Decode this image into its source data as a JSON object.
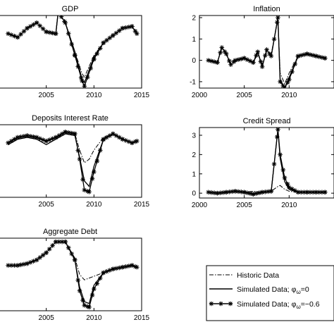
{
  "chart_data": [
    {
      "type": "line",
      "title": "GDP",
      "xlim": [
        2000,
        2015
      ],
      "ylim": [
        -2,
        2
      ],
      "xticks": [
        2005,
        2010,
        2015
      ],
      "yticks": [],
      "series": [
        {
          "style": "historic",
          "x": [
            2001,
            2002,
            2003,
            2004,
            2005,
            2006,
            2006.25,
            2007,
            2008,
            2008.75,
            2009,
            2010,
            2011,
            2012,
            2013,
            2014,
            2014.5
          ],
          "y": [
            1.0,
            0.8,
            1.3,
            1.6,
            1.1,
            1.0,
            2.2,
            1.6,
            0.0,
            -1.2,
            -1.4,
            -0.2,
            0.5,
            0.9,
            1.3,
            1.4,
            1.0
          ]
        },
        {
          "style": "zero",
          "x": [
            2001,
            2002,
            2003,
            2004,
            2005,
            2006,
            2006.25,
            2007,
            2008,
            2008.75,
            2009,
            2010,
            2011,
            2012,
            2013,
            2014,
            2014.5
          ],
          "y": [
            1.0,
            0.8,
            1.3,
            1.6,
            1.1,
            1.0,
            2.2,
            1.6,
            0.0,
            -1.5,
            -1.7,
            -0.3,
            0.5,
            0.9,
            1.3,
            1.4,
            1.0
          ]
        },
        {
          "style": "neg",
          "x": [
            2001,
            2002,
            2003,
            2004,
            2005,
            2006,
            2006.25,
            2007,
            2008,
            2008.75,
            2009,
            2010,
            2011,
            2012,
            2013,
            2014,
            2014.5
          ],
          "y": [
            1.0,
            0.8,
            1.3,
            1.6,
            1.1,
            1.0,
            2.2,
            1.6,
            -0.2,
            -1.6,
            -1.9,
            -0.4,
            0.5,
            0.9,
            1.3,
            1.4,
            1.0
          ]
        }
      ]
    },
    {
      "type": "line",
      "title": "Inflation",
      "xlim": [
        2000,
        2015
      ],
      "ylim": [
        -1.3,
        2.1
      ],
      "xticks": [
        2000,
        2005,
        2010
      ],
      "yticks": [
        -1,
        0,
        1,
        2
      ],
      "series": [
        {
          "style": "historic",
          "x": [
            2001,
            2002,
            2002.5,
            2003,
            2003.5,
            2004,
            2005,
            2006,
            2006.5,
            2007,
            2007.5,
            2008,
            2008.75,
            2009,
            2009.5,
            2010,
            2011,
            2012,
            2013,
            2014
          ],
          "y": [
            0.0,
            -0.1,
            0.6,
            0.3,
            -0.2,
            0.0,
            0.1,
            -0.1,
            0.3,
            -0.2,
            0.4,
            0.3,
            1.9,
            -0.6,
            -1.1,
            -0.6,
            0.2,
            0.3,
            0.2,
            0.1
          ]
        },
        {
          "style": "zero",
          "x": [
            2001,
            2002,
            2002.5,
            2003,
            2003.5,
            2004,
            2005,
            2006,
            2006.5,
            2007,
            2007.5,
            2008,
            2008.75,
            2009,
            2009.5,
            2010,
            2011,
            2012,
            2013,
            2014
          ],
          "y": [
            0.0,
            -0.1,
            0.6,
            0.3,
            -0.2,
            0.0,
            0.1,
            -0.1,
            0.4,
            -0.3,
            0.5,
            0.2,
            2.0,
            -0.9,
            -1.3,
            -0.8,
            0.2,
            0.3,
            0.2,
            0.1
          ]
        },
        {
          "style": "neg",
          "x": [
            2001,
            2002,
            2002.5,
            2003,
            2003.5,
            2004,
            2005,
            2006,
            2006.5,
            2007,
            2007.5,
            2008,
            2008.75,
            2009,
            2009.5,
            2010,
            2011,
            2012,
            2013,
            2014
          ],
          "y": [
            0.0,
            -0.1,
            0.6,
            0.3,
            -0.2,
            0.0,
            0.1,
            -0.1,
            0.4,
            -0.3,
            0.5,
            0.2,
            2.0,
            -1.0,
            -1.3,
            -0.9,
            0.2,
            0.3,
            0.2,
            0.1
          ]
        }
      ]
    },
    {
      "type": "line",
      "title": "Deposits Interest Rate",
      "xlim": [
        2000,
        2015
      ],
      "ylim": [
        -2,
        2
      ],
      "xticks": [
        2005,
        2010,
        2015
      ],
      "yticks": [],
      "series": [
        {
          "style": "historic",
          "x": [
            2001,
            2002,
            2003,
            2004,
            2005,
            2006,
            2007,
            2008,
            2008.5,
            2009,
            2009.5,
            2010,
            2011,
            2012,
            2013,
            2014,
            2014.5
          ],
          "y": [
            1.0,
            1.3,
            1.4,
            1.3,
            1.1,
            1.3,
            1.6,
            1.5,
            0.6,
            -0.1,
            0.1,
            0.6,
            1.3,
            1.5,
            1.2,
            1.0,
            1.1
          ]
        },
        {
          "style": "zero",
          "x": [
            2001,
            2002,
            2003,
            2004,
            2005,
            2006,
            2007,
            2008,
            2008.5,
            2009,
            2009.5,
            2010,
            2011,
            2012,
            2013,
            2014,
            2014.5
          ],
          "y": [
            0.9,
            1.2,
            1.3,
            1.2,
            0.9,
            1.2,
            1.5,
            1.4,
            0.2,
            -1.1,
            -1.4,
            -0.3,
            1.2,
            1.5,
            1.2,
            1.0,
            1.1
          ]
        },
        {
          "style": "neg",
          "x": [
            2001,
            2002,
            2003,
            2004,
            2005,
            2006,
            2007,
            2008,
            2008.5,
            2009,
            2009.5,
            2010,
            2011,
            2012,
            2013,
            2014,
            2014.5
          ],
          "y": [
            1.0,
            1.3,
            1.4,
            1.3,
            1.1,
            1.3,
            1.6,
            1.5,
            0.1,
            -1.6,
            -1.7,
            -0.6,
            1.2,
            1.5,
            1.2,
            1.0,
            1.1
          ]
        }
      ]
    },
    {
      "type": "line",
      "title": "Credit Spread",
      "xlim": [
        2000,
        2015
      ],
      "ylim": [
        -0.25,
        3.4
      ],
      "xticks": [
        2000,
        2005,
        2010
      ],
      "yticks": [
        0,
        1,
        2,
        3
      ],
      "series": [
        {
          "style": "historic",
          "x": [
            2001,
            2002,
            2003,
            2004,
            2005,
            2006,
            2007,
            2008,
            2008.75,
            2009,
            2009.5,
            2010,
            2011,
            2012,
            2013,
            2014
          ],
          "y": [
            0.05,
            0.0,
            0.05,
            0.1,
            0.05,
            0.1,
            0.05,
            0.1,
            0.35,
            0.4,
            0.2,
            0.1,
            0.05,
            0.05,
            0.05,
            0.05
          ]
        },
        {
          "style": "zero",
          "x": [
            2001,
            2002,
            2003,
            2004,
            2005,
            2006,
            2007,
            2008,
            2008.75,
            2009,
            2009.5,
            2010,
            2011,
            2012,
            2013,
            2014
          ],
          "y": [
            0.05,
            0.0,
            0.05,
            0.1,
            0.05,
            -0.05,
            0.05,
            0.1,
            3.3,
            1.8,
            0.6,
            0.2,
            0.05,
            0.05,
            0.05,
            0.05
          ]
        },
        {
          "style": "neg",
          "x": [
            2001,
            2002,
            2003,
            2004,
            2005,
            2006,
            2007,
            2008,
            2008.75,
            2009,
            2009.5,
            2010,
            2011,
            2012,
            2013,
            2014
          ],
          "y": [
            0.05,
            0.0,
            0.05,
            0.1,
            0.05,
            -0.05,
            0.05,
            0.1,
            3.3,
            2.0,
            0.8,
            0.3,
            0.05,
            0.05,
            0.05,
            0.05
          ]
        }
      ]
    },
    {
      "type": "line",
      "title": "Aggregate Debt",
      "xlim": [
        2000,
        2015
      ],
      "ylim": [
        -2,
        2
      ],
      "xticks": [
        2005,
        2010,
        2015
      ],
      "yticks": [],
      "series": [
        {
          "style": "historic",
          "x": [
            2001,
            2002,
            2003,
            2004,
            2005,
            2006,
            2007,
            2008,
            2008.5,
            2009,
            2009.5,
            2010,
            2011,
            2012,
            2013,
            2014,
            2014.5
          ],
          "y": [
            0.5,
            0.5,
            0.6,
            0.8,
            1.2,
            1.8,
            1.8,
            0.9,
            0.0,
            -0.3,
            -0.2,
            -0.1,
            0.1,
            0.3,
            0.4,
            0.5,
            0.4
          ]
        },
        {
          "style": "zero",
          "x": [
            2001,
            2002,
            2003,
            2004,
            2005,
            2006,
            2007,
            2008,
            2008.5,
            2009,
            2009.5,
            2010,
            2011,
            2012,
            2013,
            2014,
            2014.5
          ],
          "y": [
            0.5,
            0.5,
            0.6,
            0.8,
            1.2,
            1.8,
            1.8,
            0.8,
            -0.7,
            -1.5,
            -1.6,
            -0.6,
            0.1,
            0.3,
            0.4,
            0.5,
            0.4
          ]
        },
        {
          "style": "neg",
          "x": [
            2001,
            2002,
            2003,
            2004,
            2005,
            2006,
            2007,
            2008,
            2008.5,
            2009,
            2009.5,
            2010,
            2011,
            2012,
            2013,
            2014,
            2014.5
          ],
          "y": [
            0.5,
            0.5,
            0.6,
            0.8,
            1.2,
            1.8,
            1.8,
            0.8,
            -0.9,
            -1.7,
            -1.8,
            -0.8,
            0.1,
            0.3,
            0.4,
            0.5,
            0.4
          ]
        }
      ]
    }
  ],
  "legend": {
    "items": [
      {
        "key": "historic",
        "label": "Historic Data"
      },
      {
        "key": "zero",
        "label": "Simulated Data; φω=0",
        "sym": "φ",
        "sub": "ω",
        "tail": "=0"
      },
      {
        "key": "neg",
        "label": "Simulated Data; φω=−0.6",
        "sym": "φ",
        "sub": "ω",
        "tail": "=−0.6"
      }
    ]
  },
  "colors": {
    "line": "#000000",
    "background": "#ffffff"
  }
}
